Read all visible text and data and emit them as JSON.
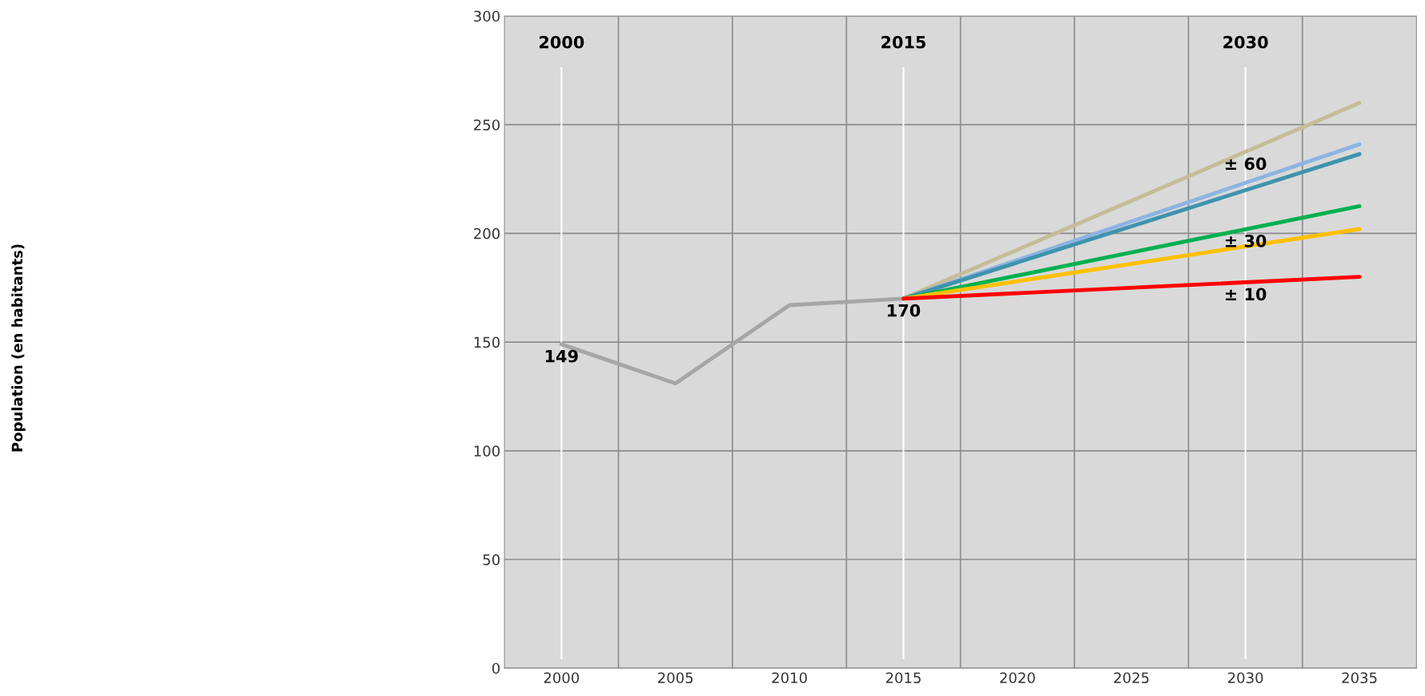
{
  "chart_data": {
    "type": "line",
    "series": [
      {
        "color": "#a6a6a6",
        "x": [
          2000,
          2005,
          2010,
          2015
        ],
        "values": [
          149,
          131,
          167,
          170
        ]
      },
      {
        "color": "#c4bd97",
        "x": [
          2015,
          2035
        ],
        "values": [
          170,
          260
        ]
      },
      {
        "color": "#8db4e2",
        "x": [
          2015,
          2035
        ],
        "values": [
          170,
          241
        ]
      },
      {
        "color": "#3f93ad",
        "x": [
          2015,
          2035
        ],
        "values": [
          170,
          236.5
        ]
      },
      {
        "color": "#00b050",
        "x": [
          2015,
          2035
        ],
        "values": [
          170,
          212.5
        ]
      },
      {
        "color": "#ffc000",
        "x": [
          2015,
          2035
        ],
        "values": [
          170,
          202
        ]
      },
      {
        "color": "#ff0000",
        "x": [
          2015,
          2035
        ],
        "values": [
          170,
          180
        ]
      }
    ],
    "xlim": [
      1997.5,
      2037.5
    ],
    "xticks": [
      2000,
      2005,
      2010,
      2015,
      2020,
      2025,
      2030,
      2035
    ],
    "ylim": [
      0,
      300
    ],
    "yticks": [
      0,
      50,
      100,
      150,
      200,
      250,
      300
    ],
    "grid": true,
    "ref_lines": [
      {
        "axis": "x",
        "value": 2000,
        "label": "2000",
        "color": "#ffffff"
      },
      {
        "axis": "x",
        "value": 2015,
        "label": "2015",
        "color": "#ffffff"
      },
      {
        "axis": "x",
        "value": 2030,
        "label": "2030",
        "color": "#ffffff"
      }
    ],
    "annotations": [
      "Population (en habitants)",
      {
        "text": "149",
        "x": 2000,
        "y": 149
      },
      {
        "text": "170",
        "x": 2015,
        "y": 170
      },
      {
        "text": "± 60",
        "x": 2030,
        "y": 237.5
      },
      {
        "text": "± 30",
        "x": 2030,
        "y": 202
      },
      {
        "text": "± 10",
        "x": 2030,
        "y": 177.5
      }
    ]
  }
}
